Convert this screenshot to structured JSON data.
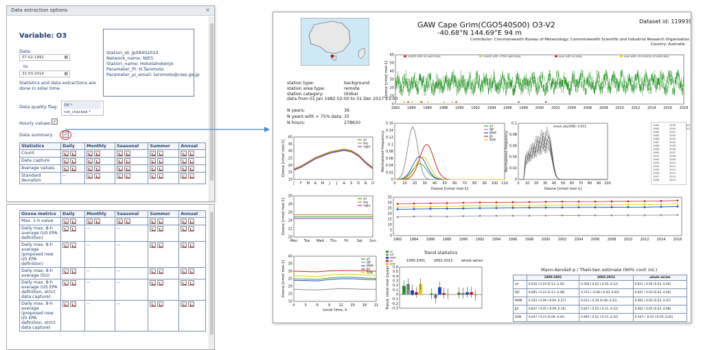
{
  "dialog": {
    "title": "Data extraction options",
    "close_glyph": "×",
    "variable": "Variable: O3",
    "date_label": "Date:",
    "date_from": "07-02-1991",
    "to_label": "to",
    "date_to": "31-03-2014",
    "solar_note": "Statistics and data extractions are done in solar time.",
    "info": [
      "Station_id: Jp08402010",
      "Network_name: NIES",
      "Station_name: Hokotahokenjo",
      "Parameter_PI: H.Tanimoto",
      "Parameter_pi_email: tanimoto@nies.go.jp"
    ],
    "quality_label": "Data quality flag:",
    "quality_options": [
      "OK *",
      "not_checked *"
    ],
    "hourly_label": "Hourly values:",
    "summary_label": "Data summary:",
    "stats_headers": [
      "Statistics",
      "Daily",
      "Monthly",
      "Seasonal",
      "Summer",
      "Annual"
    ],
    "stats_rows": [
      "Count",
      "Data capture",
      "Average values",
      "Standard deviation"
    ],
    "dash": "--",
    "ozone_headers": [
      "Ozone metrics",
      "Daily",
      "Monthly",
      "Seasonal",
      "Summer",
      "Annual"
    ],
    "ozone_rows": [
      "Max. 1-h value",
      "Daily max. 8-h average (US EPA definition)",
      "Daily max. 8-h average (proposed new US EPA definition)",
      "Daily max. 8-h average (EU)",
      "Daily max. 8-h average (US EPA definition, strict data capture)",
      "Daily max. 8-h average (proposed new US EPA definition, strict data capture)"
    ]
  },
  "report": {
    "title": "GAW  Cape Grim(CGO540S00) O3-V2",
    "coords": "-40.68°N  144.69°E  94 m",
    "dataset": "Dataset id: 119939",
    "contributor": "Contributor: Commonwealth Bureau of Meteorology; Commonwealth Scientific and Industrial Research Organisation",
    "country": "Country: Australia",
    "station_info": [
      [
        "station type:",
        "background"
      ],
      [
        "station area type:",
        "remote"
      ],
      [
        "station category:",
        "Global"
      ]
    ],
    "data_from": "data from 01 Jan 1982 02:00 to 31 Dec 2017 23:00",
    "counts": [
      [
        "N years:",
        "36"
      ],
      [
        "N years with > 75% data:",
        "35"
      ],
      [
        "N hours:",
        "278630"
      ]
    ],
    "ts_legend": [
      "month with no valid data",
      "month with <75% valid data",
      "year with no data",
      "year with <9 months of valid data"
    ],
    "ts_ylabel": "Ozone [nmol mol-1]",
    "ts_years": [
      "1982",
      "1984",
      "1986",
      "1988",
      "1990",
      "1992",
      "1994",
      "1996",
      "1998",
      "2000",
      "2002",
      "2004",
      "2006",
      "2008",
      "2010",
      "2012",
      "2014",
      "2016",
      "2018"
    ],
    "seasonal_months": [
      "J",
      "F",
      "M",
      "A",
      "M",
      "J",
      "J",
      "A",
      "S",
      "O",
      "N",
      "D"
    ],
    "week_days": [
      "Mon",
      "Tue",
      "Wed",
      "Thu",
      "Fri",
      "Sat",
      "Sun"
    ],
    "diurnal_hours": [
      "0",
      "3",
      "6",
      "9",
      "12",
      "15",
      "18",
      "21"
    ],
    "diurnal_xlabel": "Local time, h",
    "series_names_adn": [
      "all",
      "day",
      "night"
    ],
    "series_names_seasons": [
      "all",
      "DJF",
      "MAM",
      "JJA",
      "SON"
    ],
    "freq_ylabel": "Normalized frequency",
    "freq_xlabel": "Ozone [nmol mol-1]",
    "freq_x": [
      "0",
      "10",
      "20",
      "30",
      "40",
      "50",
      "60",
      "70",
      "80",
      "90",
      "100",
      "110"
    ],
    "freq2_x": [
      "0",
      "10",
      "20",
      "30",
      "40",
      "50",
      "60",
      "70",
      "80",
      "90",
      "100"
    ],
    "emd": "mean adj.EMD: 0.011",
    "year_legend": [
      "1982",
      "1983",
      "1984",
      "1985",
      "1986",
      "1987",
      "1988",
      "1989",
      "1990",
      "1991",
      "1992",
      "1993",
      "1994",
      "1995",
      "1996",
      "1997",
      "1998",
      "1999",
      "2000",
      "2001",
      "2002",
      "2003",
      "2004",
      "2005",
      "2006",
      "2007",
      "2008",
      "2009",
      "2010",
      "2011",
      "2012",
      "2013",
      "2014",
      "2015",
      "2016",
      "2017"
    ],
    "annual_years": [
      "1982",
      "1984",
      "1986",
      "1988",
      "1990",
      "1992",
      "1994",
      "1996",
      "1998",
      "2000",
      "2002",
      "2004",
      "2006",
      "2008",
      "2010",
      "2012",
      "2014",
      "2016"
    ],
    "trend_title": "Trend statistics",
    "trend_ylabel": "Trend, nmol mol-1/year",
    "trend_periods": [
      "1990-2001",
      "2002-2013",
      "whole series"
    ],
    "mk_title": "Mann-Kendall p / Theil-Sen estimate (90% conf. int.)",
    "mk_headers": [
      "",
      "1990-2001",
      "2002-2013",
      "whole series"
    ],
    "mk_rows": [
      [
        "all",
        "0.016 / 0.19 (0.13..0.35)",
        "0.304 / 0.02 (-0.03..0.12)",
        "0.011 / 0.04 (0.02..0.06)"
      ],
      [
        "DJF",
        "0.005 / 0.23 (0.11..0.38)",
        "0.373 / -0.08 (-0.20..0.04)",
        "0.047 / 0.03 (0.01..0.06)"
      ],
      [
        "MAM",
        "0.193 / 0.09 (-0.04..0.27)",
        "0.011 / 0.16 (0.08..0.22)",
        "0.005 / 0.05 (0.02..0.07)"
      ],
      [
        "JJA",
        "0.837 / 0.05 (-0.09..0.16)",
        "0.837 / 0.03 (-0.11..0.12)",
        "0.002 / 0.05 (0.02..0.08)"
      ],
      [
        "SON",
        "0.047 / 0.23 (0.09..0.42)",
        "0.945 / 0.01 (-0.11..0.16)",
        "0.347 / -0.02 (-0.05..0.02)"
      ]
    ]
  },
  "colors": {
    "all": "#2aa02a",
    "day": "#e07020",
    "night": "#9030c0",
    "djf": "#8c8c8c",
    "mam": "#1f4fd0",
    "jja": "#d02020",
    "son": "#e8c800",
    "ts": "#2e9a2e",
    "arrow": "#4a8ad0"
  },
  "chart_data": [
    {
      "type": "line",
      "id": "seasonal",
      "x": [
        "J",
        "F",
        "M",
        "A",
        "M",
        "J",
        "J",
        "A",
        "S",
        "O",
        "N",
        "D"
      ],
      "ylim": [
        10,
        40
      ],
      "series": [
        {
          "name": "all",
          "values": [
            17,
            19,
            22,
            25,
            27,
            29,
            30,
            31,
            30,
            27,
            22,
            18
          ]
        },
        {
          "name": "day",
          "values": [
            17.5,
            19.5,
            22.5,
            25.5,
            27.5,
            29.5,
            30.5,
            31.5,
            30.5,
            27.5,
            22.5,
            18.5
          ]
        },
        {
          "name": "night",
          "values": [
            16.5,
            18.5,
            21.5,
            24.5,
            26.5,
            28.5,
            29.5,
            30.5,
            29.5,
            26.5,
            21.5,
            17.5
          ]
        }
      ]
    },
    {
      "type": "line",
      "id": "weekly",
      "x": [
        "Mon",
        "Tue",
        "Wed",
        "Thu",
        "Fri",
        "Sat",
        "Sun"
      ],
      "ylim": [
        20,
        30
      ],
      "series": [
        {
          "name": "all",
          "values": [
            24.9,
            24.9,
            24.9,
            24.9,
            24.9,
            24.9,
            24.9
          ]
        },
        {
          "name": "day",
          "values": [
            25.4,
            25.4,
            25.4,
            25.4,
            25.4,
            25.4,
            25.4
          ]
        },
        {
          "name": "night",
          "values": [
            24.5,
            24.5,
            24.5,
            24.5,
            24.5,
            24.5,
            24.5
          ]
        }
      ]
    },
    {
      "type": "line",
      "id": "diurnal",
      "x": [
        0,
        3,
        6,
        9,
        12,
        15,
        18,
        21
      ],
      "ylim": [
        10,
        40
      ],
      "series": [
        {
          "name": "all",
          "values": [
            25,
            24.8,
            24.6,
            25.5,
            26,
            26,
            25.5,
            25.2
          ]
        },
        {
          "name": "DJF",
          "values": [
            18,
            17.8,
            17.6,
            18,
            18.5,
            18.3,
            18,
            18
          ]
        },
        {
          "name": "MAM",
          "values": [
            24,
            23.8,
            23.6,
            24.5,
            25,
            25,
            24.6,
            24.3
          ]
        },
        {
          "name": "JJA",
          "values": [
            30,
            29.8,
            29.6,
            30.2,
            30.5,
            30.4,
            30.2,
            30
          ]
        },
        {
          "name": "SON",
          "values": [
            27,
            26.8,
            26.5,
            27.5,
            28,
            28,
            27.5,
            27.2
          ]
        }
      ]
    },
    {
      "type": "line",
      "id": "annual",
      "x": [
        1982,
        1984,
        1986,
        1988,
        1990,
        1992,
        1994,
        1996,
        1998,
        2000,
        2002,
        2004,
        2006,
        2008,
        2010,
        2012,
        2014,
        2016
      ],
      "ylim": [
        0,
        35
      ],
      "series": [
        {
          "name": "all",
          "values": [
            24,
            24.3,
            24.5,
            24.6,
            24.8,
            25,
            25.2,
            25.4,
            25.5,
            25.6,
            25.7,
            25.8,
            25.8,
            25.9,
            26,
            26,
            26.2,
            26.5
          ]
        },
        {
          "name": "DJF",
          "values": [
            17,
            17.5,
            17.6,
            17.4,
            17.8,
            18,
            18.1,
            18.2,
            18.2,
            18.3,
            18.4,
            18.4,
            18.5,
            18.5,
            18.6,
            18.6,
            18.7,
            18.8
          ]
        },
        {
          "name": "MAM",
          "values": [
            24,
            24.2,
            24.5,
            24.7,
            24.8,
            25,
            25.1,
            25.3,
            25.5,
            25.6,
            25.7,
            25.8,
            25.8,
            25.9,
            26,
            26,
            26.3,
            26.6
          ]
        },
        {
          "name": "JJA",
          "values": [
            29,
            29.3,
            29.5,
            29.7,
            30,
            30.2,
            30.3,
            30.5,
            30.6,
            30.8,
            31,
            31.1,
            31.1,
            31.2,
            31.3,
            31.4,
            31.6,
            32
          ]
        },
        {
          "name": "SON",
          "values": [
            26,
            26.3,
            26.5,
            26.7,
            27,
            27.2,
            27.3,
            27.5,
            27.6,
            27.8,
            28,
            28.1,
            28.1,
            28.2,
            28.3,
            28.4,
            28.6,
            29
          ]
        }
      ]
    },
    {
      "type": "bar",
      "id": "trend",
      "categories": [
        "1990-2001",
        "2002-2013",
        "whole series"
      ],
      "ylim": [
        -0.3,
        0.6
      ],
      "series": [
        {
          "name": "all",
          "values": [
            0.19,
            0.02,
            0.04
          ]
        },
        {
          "name": "DJF",
          "values": [
            0.23,
            -0.08,
            0.03
          ]
        },
        {
          "name": "MAM",
          "values": [
            0.09,
            0.16,
            0.05
          ]
        },
        {
          "name": "JJA",
          "values": [
            0.05,
            0.03,
            0.05
          ]
        },
        {
          "name": "SON",
          "values": [
            0.23,
            0.01,
            -0.02
          ]
        }
      ]
    },
    {
      "type": "line",
      "id": "freq_seasons",
      "x": [
        0,
        10,
        20,
        30,
        40,
        50,
        60,
        70,
        80,
        90,
        100,
        110
      ],
      "ylim": [
        0,
        0.16
      ],
      "xlabel": "Ozone [nmol mol-1]",
      "ylabel": "Normalized frequency",
      "series": [
        {
          "name": "all",
          "peak_x": 25,
          "peak_y": 0.045
        },
        {
          "name": "DJF",
          "peak_x": 18,
          "peak_y": 0.15
        },
        {
          "name": "MAM",
          "peak_x": 25,
          "peak_y": 0.065
        },
        {
          "name": "JJA",
          "peak_x": 32,
          "peak_y": 0.1
        },
        {
          "name": "SON",
          "peak_x": 28,
          "peak_y": 0.065
        }
      ]
    },
    {
      "type": "line",
      "id": "freq_years",
      "x": [
        0,
        10,
        20,
        30,
        40,
        50,
        60,
        70,
        80,
        90,
        100
      ],
      "ylim": [
        0,
        0.1
      ],
      "xlabel": "Ozone [nmol mol-1]",
      "ylabel": "Normalized frequency"
    },
    {
      "type": "scatter",
      "id": "timeseries",
      "x_range": [
        1982,
        2018
      ],
      "ylim": [
        0,
        60
      ],
      "ylabel": "Ozone [nmol mol-1]"
    }
  ]
}
